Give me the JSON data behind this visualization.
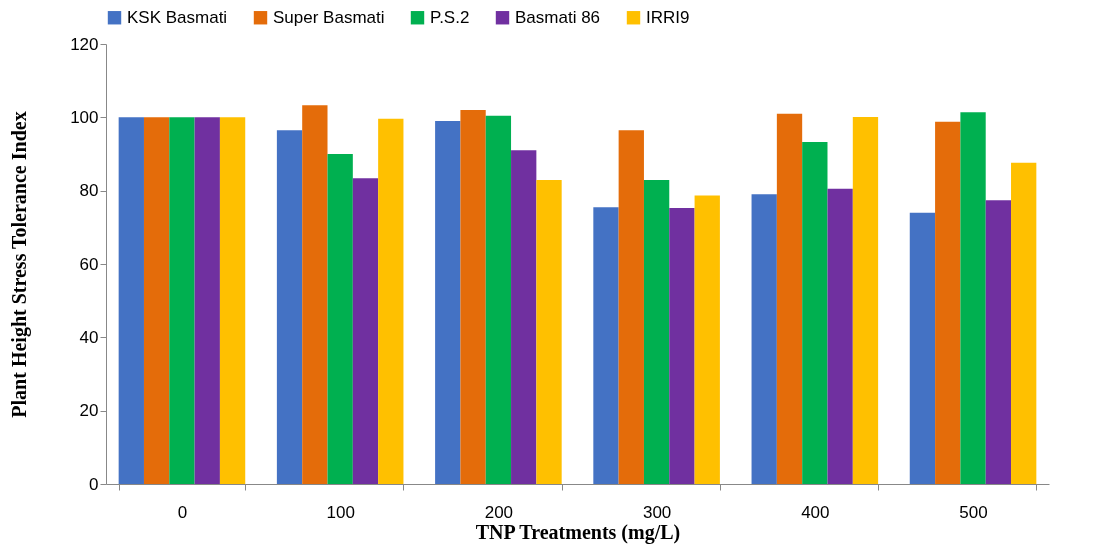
{
  "chart_data": {
    "type": "bar",
    "xlabel": "TNP Treatments (mg/L)",
    "ylabel": "Plant Height Stress Tolerance Index",
    "categories": [
      "0",
      "100",
      "200",
      "300",
      "400",
      "500"
    ],
    "series": [
      {
        "name": "KSK Basmati",
        "color": "#4472c4",
        "values": [
          100,
          96.5,
          99,
          75.5,
          79,
          74
        ]
      },
      {
        "name": "Super Basmati",
        "color": "#e46c0a",
        "values": [
          100,
          103.3,
          102,
          96.5,
          101,
          98.8
        ]
      },
      {
        "name": "P.S.2",
        "color": "#00b050",
        "values": [
          100,
          90,
          100.4,
          82.9,
          93.3,
          101.4
        ]
      },
      {
        "name": "Basmati 86",
        "color": "#7030a0",
        "values": [
          100,
          83.4,
          91,
          75.3,
          80.5,
          77.4
        ]
      },
      {
        "name": "IRRI9",
        "color": "#ffc000",
        "values": [
          100,
          99.6,
          82.9,
          78.7,
          100.1,
          87.6
        ]
      }
    ],
    "ylim": [
      0,
      120
    ],
    "yticks": [
      0,
      20,
      40,
      60,
      80,
      100,
      120
    ],
    "legend": "top",
    "grid": false
  }
}
